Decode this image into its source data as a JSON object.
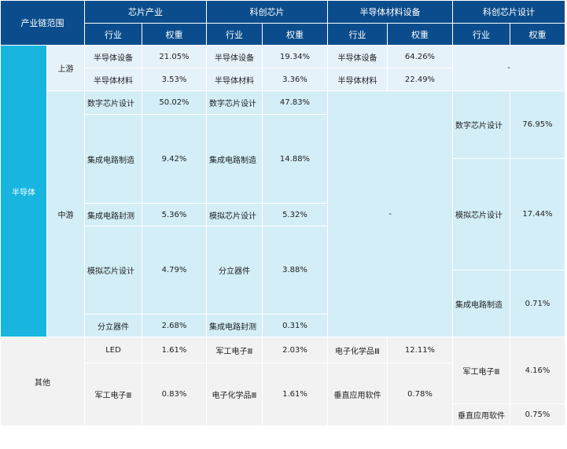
{
  "header": {
    "scope": "产业链范围",
    "groups": [
      "芯片产业",
      "科创芯片",
      "半导体材料设备",
      "科创芯片设计"
    ],
    "industry": "行业",
    "weight": "权重"
  },
  "semiconductor": {
    "label": "半导体",
    "upstream": {
      "label": "上游",
      "rows": [
        [
          "半导体设备",
          "21.05%",
          "半导体设备",
          "19.34%",
          "半导体设备",
          "64.26%"
        ],
        [
          "半导体材料",
          "3.53%",
          "半导体材料",
          "3.36%",
          "半导体材料",
          "22.49%"
        ]
      ],
      "g4": "-"
    },
    "midstream": {
      "label": "中游",
      "rows": [
        [
          "数字芯片设计",
          "50.02%",
          "数字芯片设计",
          "47.83%"
        ],
        [
          "集成电路制造",
          "9.42%",
          "集成电路制造",
          "14.88%"
        ],
        [
          "集成电路封测",
          "5.36%",
          "模拟芯片设计",
          "5.32%"
        ],
        [
          "模拟芯片设计",
          "4.79%",
          "分立器件",
          "3.88%"
        ],
        [
          "分立器件",
          "2.68%",
          "集成电路封测",
          "0.31%"
        ]
      ],
      "g3": "-",
      "g4": [
        [
          "数字芯片设计",
          "76.95%"
        ],
        [
          "模拟芯片设计",
          "17.44%"
        ],
        [
          "集成电路制造",
          "0.71%"
        ]
      ]
    }
  },
  "other": {
    "label": "其他",
    "rows": [
      [
        "LED",
        "1.61%",
        "军工电子Ⅲ",
        "2.03%",
        "电子化学品Ⅲ",
        "12.11%"
      ],
      [
        "军工电子Ⅲ",
        "0.83%",
        "电子化学品Ⅲ",
        "1.61%",
        "垂直应用软件",
        "0.78%"
      ]
    ],
    "g4": [
      [
        "军工电子Ⅲ",
        "4.16%"
      ],
      [
        "垂直应用软件",
        "0.75%"
      ]
    ]
  }
}
